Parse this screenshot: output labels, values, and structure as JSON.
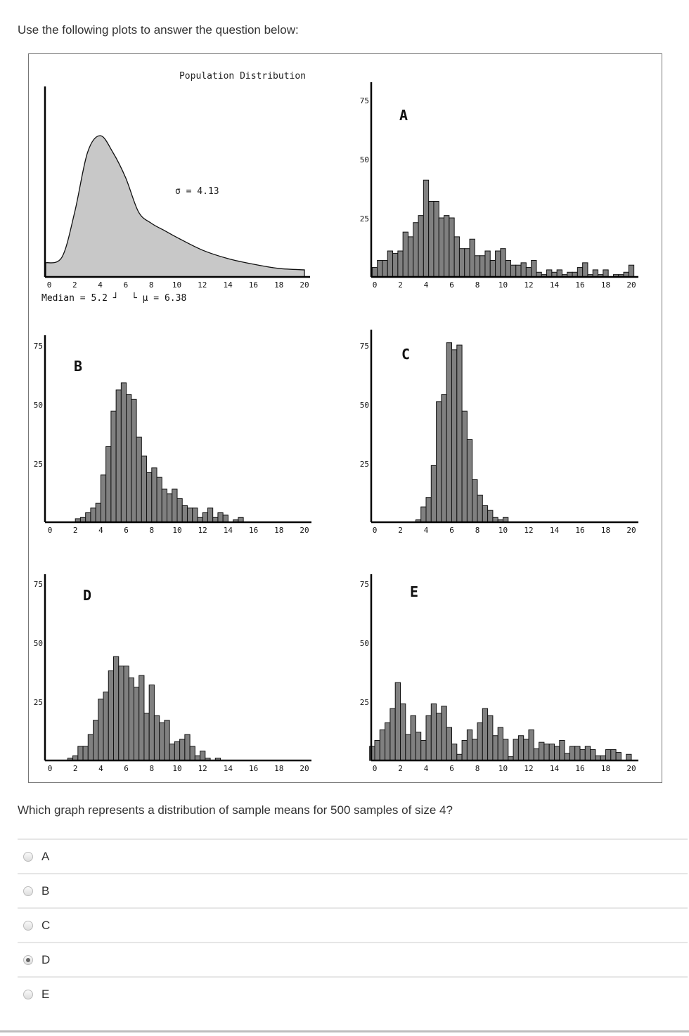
{
  "intro": "Use the following plots to answer the question below:",
  "question": "Which graph represents a distribution of sample means for 500 samples of size 4?",
  "options": [
    {
      "label": "A",
      "selected": false
    },
    {
      "label": "B",
      "selected": false
    },
    {
      "label": "C",
      "selected": false
    },
    {
      "label": "D",
      "selected": true
    },
    {
      "label": "E",
      "selected": false
    }
  ],
  "colors": {
    "bar_fill": "#808080",
    "curve_fill": "#c8c8c8",
    "text": "#333333",
    "radio_selected": "#666666"
  },
  "chart_data": [
    {
      "id": "population",
      "type": "area",
      "title": "Population Distribution",
      "sigma_label": "σ = 4.13",
      "median_label": "Median = 5.2",
      "mu_label": "μ = 6.38",
      "x_ticks": [
        "0",
        "2",
        "4",
        "6",
        "8",
        "10",
        "12",
        "14",
        "16",
        "18",
        "20"
      ],
      "xlim": [
        0,
        20
      ],
      "x": [
        0,
        1,
        2,
        3,
        4,
        5,
        6,
        7,
        8,
        9,
        10,
        12,
        14,
        16,
        18,
        20
      ],
      "density_relative": [
        10,
        14,
        46,
        88,
        100,
        88,
        70,
        46,
        38,
        33,
        28,
        19,
        13,
        9,
        6,
        5
      ]
    },
    {
      "id": "A",
      "type": "bar",
      "label": "A",
      "x_ticks": [
        "0",
        "2",
        "4",
        "6",
        "8",
        "10",
        "12",
        "14",
        "16",
        "18",
        "20"
      ],
      "y_ticks": [
        "25",
        "50",
        "75"
      ],
      "xlim": [
        0,
        20
      ],
      "ylim": [
        0,
        75
      ],
      "bin_start": -0.2,
      "bin_width": 0.4,
      "values": [
        4,
        7,
        7,
        11,
        10,
        11,
        19,
        17,
        23,
        26,
        41,
        32,
        32,
        25,
        26,
        25,
        17,
        12,
        12,
        16,
        9,
        9,
        11,
        7,
        11,
        12,
        7,
        5,
        5,
        6,
        4,
        7,
        2,
        1,
        3,
        2,
        3,
        1,
        2,
        2,
        4,
        6,
        1,
        3,
        1,
        3,
        0,
        1,
        1,
        2,
        5
      ]
    },
    {
      "id": "B",
      "type": "bar",
      "label": "B",
      "x_ticks": [
        "0",
        "2",
        "4",
        "6",
        "8",
        "10",
        "12",
        "14",
        "16",
        "18",
        "20"
      ],
      "y_ticks": [
        "25",
        "50",
        "75"
      ],
      "xlim": [
        0,
        20
      ],
      "ylim": [
        0,
        75
      ],
      "bin_start": 2.0,
      "bin_width": 0.4,
      "values": [
        1.5,
        2,
        4,
        6,
        8,
        20,
        32,
        47,
        56,
        59,
        54,
        52,
        36,
        28,
        21,
        23,
        19,
        14,
        12,
        14,
        10,
        7,
        6,
        6,
        2,
        4,
        6,
        2,
        4,
        3,
        0,
        1,
        2
      ]
    },
    {
      "id": "C",
      "type": "bar",
      "label": "C",
      "x_ticks": [
        "0",
        "2",
        "4",
        "6",
        "8",
        "10",
        "12",
        "14",
        "16",
        "18",
        "20"
      ],
      "y_ticks": [
        "25",
        "50",
        "75"
      ],
      "xlim": [
        0,
        20
      ],
      "ylim": [
        0,
        75
      ],
      "bin_start": 3.2,
      "bin_width": 0.4,
      "values": [
        1,
        6.5,
        10.5,
        24,
        51,
        54,
        76,
        73,
        75,
        47,
        35,
        18,
        11.5,
        7,
        5,
        2,
        1,
        2
      ]
    },
    {
      "id": "D",
      "type": "bar",
      "label": "D",
      "x_ticks": [
        "0",
        "2",
        "4",
        "6",
        "8",
        "10",
        "12",
        "14",
        "16",
        "18",
        "20"
      ],
      "y_ticks": [
        "25",
        "50",
        "75"
      ],
      "xlim": [
        0,
        20
      ],
      "ylim": [
        0,
        75
      ],
      "bin_start": 1.4,
      "bin_width": 0.4,
      "values": [
        1,
        2,
        6,
        6,
        11,
        17,
        26,
        29,
        38,
        44,
        40,
        40,
        35,
        31,
        36,
        20,
        32,
        19,
        16,
        17,
        7,
        8,
        9,
        11,
        6,
        2,
        4,
        1,
        0,
        1
      ]
    },
    {
      "id": "E",
      "type": "bar",
      "label": "E",
      "x_ticks": [
        "0",
        "2",
        "4",
        "6",
        "8",
        "10",
        "12",
        "14",
        "16",
        "18",
        "20"
      ],
      "y_ticks": [
        "25",
        "50",
        "75"
      ],
      "xlim": [
        0,
        20
      ],
      "ylim": [
        0,
        75
      ],
      "bin_start": -0.4,
      "bin_width": 0.4,
      "values": [
        6,
        8.5,
        13,
        16,
        22,
        33,
        24,
        11,
        19,
        12,
        8.5,
        19,
        24,
        20,
        23,
        14,
        7,
        2.6,
        8.5,
        13,
        9,
        16,
        22,
        19,
        10.5,
        14,
        9,
        1.6,
        9,
        10.5,
        9,
        13,
        5,
        7.7,
        7,
        7,
        6,
        8.5,
        3,
        6,
        6,
        4.6,
        6,
        4.6,
        2,
        2,
        4.6,
        4.6,
        3.4,
        0,
        2.6
      ]
    }
  ]
}
